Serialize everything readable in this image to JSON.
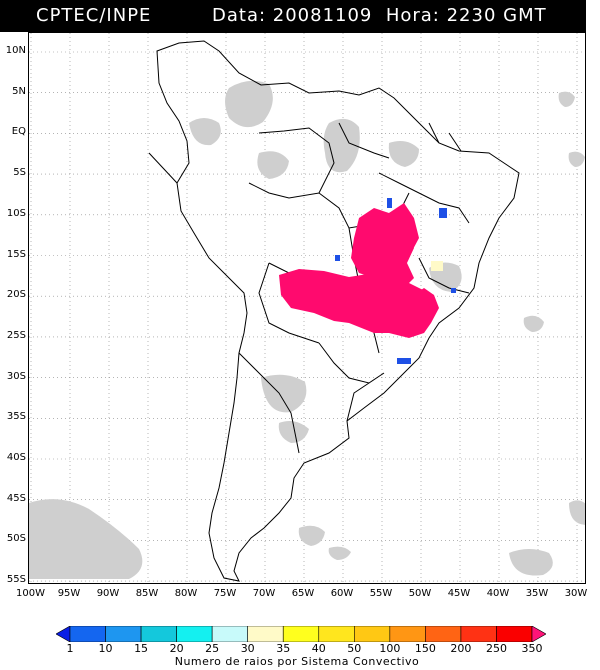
{
  "header": {
    "title": "CPTEC/INPE",
    "info": "Data: 20081109  Hora: 2230 GMT"
  },
  "axes": {
    "lat_labels": [
      "10N",
      "5N",
      "EQ",
      "5S",
      "10S",
      "15S",
      "20S",
      "25S",
      "30S",
      "35S",
      "40S",
      "45S",
      "50S",
      "55S"
    ],
    "lon_labels": [
      "100W",
      "95W",
      "90W",
      "85W",
      "80W",
      "75W",
      "70W",
      "65W",
      "60W",
      "55W",
      "50W",
      "45W",
      "40W",
      "35W",
      "30W"
    ]
  },
  "colorbar": {
    "labels": [
      "1",
      "10",
      "15",
      "20",
      "25",
      "30",
      "35",
      "40",
      "50",
      "100",
      "150",
      "200",
      "250",
      "350"
    ],
    "colors": [
      "#0a1ee6",
      "#1466f0",
      "#1e96f0",
      "#14c8dc",
      "#14f0f0",
      "#c8fafa",
      "#fffac8",
      "#ffff1e",
      "#ffe61e",
      "#ffc814",
      "#ff9614",
      "#ff6414",
      "#ff3214",
      "#fa0000",
      "#ff1478"
    ],
    "caption": "Numero de raios por Sistema Convectivo"
  },
  "map": {
    "projection": "lat-lon",
    "lon_range": [
      -100,
      -25
    ],
    "lat_range": [
      -56,
      13
    ],
    "grid": "dotted every 5 degrees",
    "cloud_color": "#cccccc",
    "main_system_color": "#ff0a6e",
    "small_system_color": "#1e50e6"
  }
}
